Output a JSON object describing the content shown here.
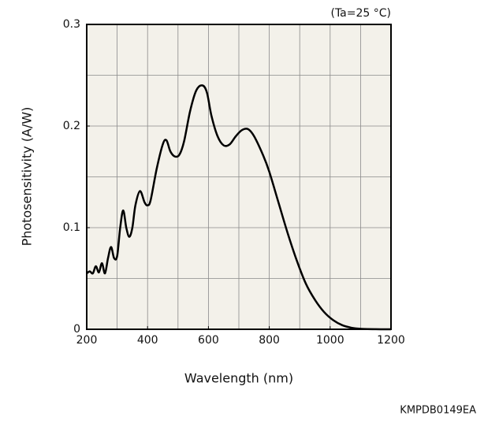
{
  "chart_data": {
    "type": "line",
    "annotation": "(Ta=25 °C)",
    "xlabel": "Wavelength (nm)",
    "ylabel": "Photosensitivity (A/W)",
    "footer": "KMPDB0149EA",
    "xlim": [
      200,
      1200
    ],
    "ylim": [
      0,
      0.3
    ],
    "xticks": [
      200,
      400,
      600,
      800,
      1000,
      1200
    ],
    "yticks": [
      0,
      0.1,
      0.2,
      0.3
    ],
    "xgrid": [
      300,
      400,
      500,
      600,
      700,
      800,
      900,
      1000,
      1100
    ],
    "ygrid": [
      0.05,
      0.1,
      0.15,
      0.2,
      0.25
    ],
    "plot_background": "#f3f1ea",
    "x": [
      200,
      210,
      220,
      230,
      240,
      250,
      260,
      270,
      280,
      290,
      300,
      310,
      320,
      330,
      340,
      350,
      360,
      375,
      390,
      400,
      410,
      430,
      450,
      462,
      475,
      490,
      505,
      520,
      540,
      560,
      580,
      595,
      610,
      630,
      650,
      670,
      690,
      710,
      730,
      750,
      780,
      800,
      830,
      860,
      890,
      920,
      950,
      980,
      1010,
      1040,
      1070,
      1100,
      1150,
      1200
    ],
    "series": [
      {
        "color": "#000000",
        "values": [
          0.055,
          0.057,
          0.055,
          0.062,
          0.056,
          0.065,
          0.055,
          0.07,
          0.081,
          0.07,
          0.072,
          0.1,
          0.117,
          0.1,
          0.091,
          0.1,
          0.122,
          0.136,
          0.125,
          0.122,
          0.127,
          0.158,
          0.182,
          0.186,
          0.175,
          0.17,
          0.172,
          0.185,
          0.215,
          0.235,
          0.24,
          0.233,
          0.21,
          0.19,
          0.181,
          0.182,
          0.19,
          0.196,
          0.197,
          0.19,
          0.171,
          0.155,
          0.125,
          0.095,
          0.068,
          0.045,
          0.029,
          0.017,
          0.009,
          0.004,
          0.0015,
          0.0005,
          0.0001,
          0
        ]
      }
    ]
  }
}
